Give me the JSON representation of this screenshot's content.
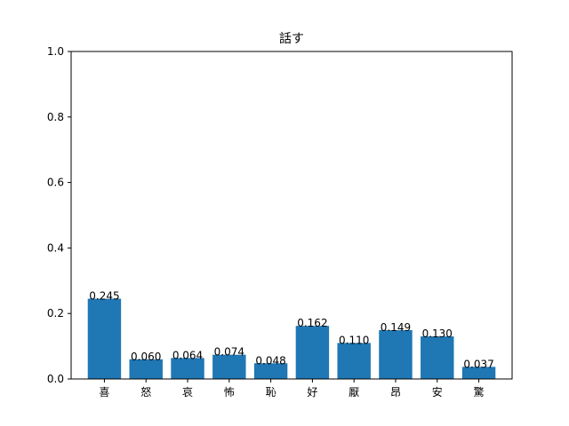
{
  "chart_data": {
    "type": "bar",
    "title": "話す",
    "xlabel": "",
    "ylabel": "",
    "categories": [
      "喜",
      "怒",
      "哀",
      "怖",
      "恥",
      "好",
      "厭",
      "昂",
      "安",
      "驚"
    ],
    "values": [
      0.245,
      0.06,
      0.064,
      0.074,
      0.048,
      0.162,
      0.11,
      0.149,
      0.13,
      0.037
    ],
    "value_labels": [
      "0.245",
      "0.060",
      "0.064",
      "0.074",
      "0.048",
      "0.162",
      "0.110",
      "0.149",
      "0.130",
      "0.037"
    ],
    "ylim": [
      0,
      1.0
    ],
    "yticks": [
      "0.0",
      "0.2",
      "0.4",
      "0.6",
      "0.8",
      "1.0"
    ],
    "bar_color": "#1f77b4",
    "grid": false,
    "legend": false
  }
}
